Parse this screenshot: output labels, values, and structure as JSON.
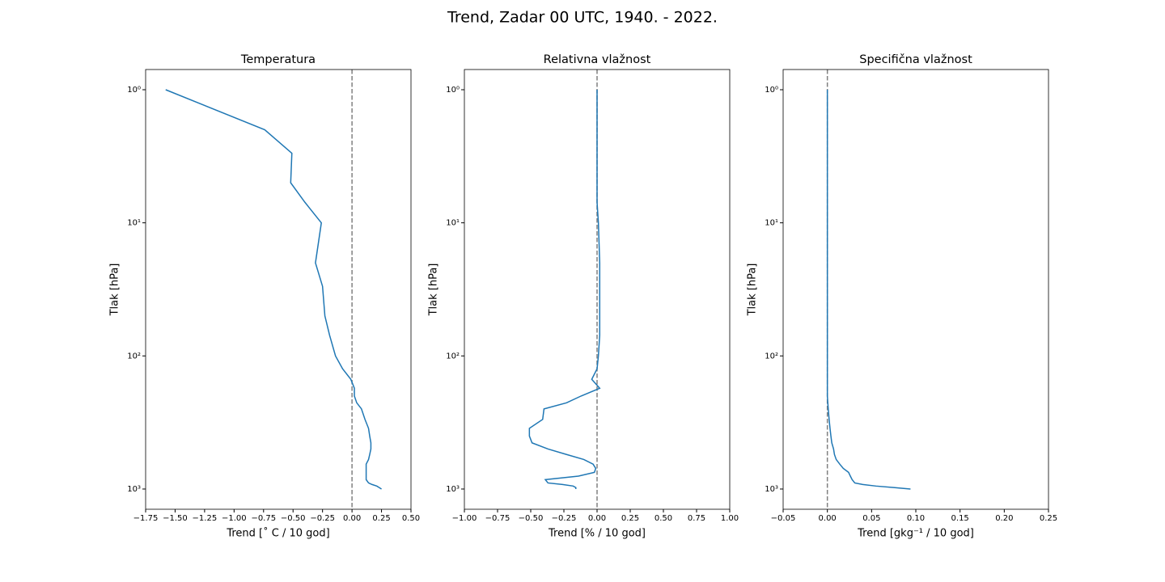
{
  "title": "Trend, Zadar 00 UTC, 1940. - 2022.",
  "chart_data": [
    {
      "type": "line",
      "title": "Temperatura",
      "xlabel": "Trend [˚ C / 10 god]",
      "ylabel": "Tlak [hPa]",
      "y": [
        1,
        2,
        3,
        5,
        7,
        10,
        20,
        30,
        50,
        70,
        100,
        125,
        150,
        175,
        200,
        225,
        250,
        300,
        350,
        400,
        450,
        500,
        550,
        600,
        650,
        700,
        750,
        800,
        850,
        900,
        925,
        950,
        975,
        1000
      ],
      "series": [
        {
          "color": "#1f77b4",
          "values": [
            -1.58,
            -0.74,
            -0.51,
            -0.52,
            -0.4,
            -0.26,
            -0.31,
            -0.25,
            -0.23,
            -0.19,
            -0.14,
            -0.08,
            -0.01,
            0.02,
            0.02,
            0.04,
            0.08,
            0.11,
            0.14,
            0.15,
            0.16,
            0.16,
            0.15,
            0.14,
            0.12,
            0.12,
            0.12,
            0.12,
            0.12,
            0.14,
            0.17,
            0.21,
            0.23,
            0.25
          ]
        }
      ],
      "xlim": [
        -1.75,
        0.5
      ],
      "xticks": [
        {
          "value": -1.75,
          "label": "−1.75"
        },
        {
          "value": -1.5,
          "label": "−1.50"
        },
        {
          "value": -1.25,
          "label": "−1.25"
        },
        {
          "value": -1,
          "label": "−1.00"
        },
        {
          "value": -0.75,
          "label": "−0.75"
        },
        {
          "value": -0.5,
          "label": "−0.50"
        },
        {
          "value": -0.25,
          "label": "−0.25"
        },
        {
          "value": 0,
          "label": "0.00"
        },
        {
          "value": 0.25,
          "label": "0.25"
        },
        {
          "value": 0.5,
          "label": "0.50"
        }
      ],
      "ylim": [
        1419,
        0.705
      ],
      "yscale": "log",
      "yticks": [
        {
          "value": 1,
          "label": "10⁰"
        },
        {
          "value": 10,
          "label": "10¹"
        },
        {
          "value": 100,
          "label": "10²"
        },
        {
          "value": 1000,
          "label": "10³"
        }
      ],
      "reference_line": {
        "value": 0,
        "color": "#808080",
        "style": "dashed"
      }
    },
    {
      "type": "line",
      "title": "Relativna vlažnost",
      "xlabel": "Trend [% / 10 god]",
      "ylabel": "Tlak [hPa]",
      "y": [
        1,
        2,
        3,
        5,
        7,
        10,
        20,
        30,
        50,
        70,
        100,
        125,
        150,
        175,
        200,
        225,
        250,
        300,
        350,
        400,
        450,
        500,
        550,
        600,
        650,
        700,
        750,
        800,
        850,
        900,
        925,
        950,
        975,
        1000
      ],
      "series": [
        {
          "color": "#1f77b4",
          "values": [
            0,
            0,
            0,
            0,
            0,
            0.01,
            0.02,
            0.02,
            0.02,
            0.02,
            0.01,
            0,
            -0.04,
            0.02,
            -0.12,
            -0.23,
            -0.4,
            -0.41,
            -0.51,
            -0.51,
            -0.49,
            -0.37,
            -0.23,
            -0.1,
            -0.03,
            -0.01,
            -0.02,
            -0.14,
            -0.39,
            -0.37,
            -0.26,
            -0.18,
            -0.16,
            -0.16
          ]
        }
      ],
      "xlim": [
        -1,
        1
      ],
      "xticks": [
        {
          "value": -1,
          "label": "−1.00"
        },
        {
          "value": -0.75,
          "label": "−0.75"
        },
        {
          "value": -0.5,
          "label": "−0.50"
        },
        {
          "value": -0.25,
          "label": "−0.25"
        },
        {
          "value": 0,
          "label": "0.00"
        },
        {
          "value": 0.25,
          "label": "0.25"
        },
        {
          "value": 0.5,
          "label": "0.50"
        },
        {
          "value": 0.75,
          "label": "0.75"
        },
        {
          "value": 1,
          "label": "1.00"
        }
      ],
      "ylim": [
        1419,
        0.705
      ],
      "yscale": "log",
      "yticks": [
        {
          "value": 1,
          "label": "10⁰"
        },
        {
          "value": 10,
          "label": "10¹"
        },
        {
          "value": 100,
          "label": "10²"
        },
        {
          "value": 1000,
          "label": "10³"
        }
      ],
      "reference_line": {
        "value": 0,
        "color": "#808080",
        "style": "dashed"
      }
    },
    {
      "type": "line",
      "title": "Specifična vlažnost",
      "xlabel": "Trend [gkg⁻¹ / 10 god]",
      "ylabel": "Tlak [hPa]",
      "y": [
        1,
        2,
        3,
        5,
        7,
        10,
        20,
        30,
        50,
        70,
        100,
        125,
        150,
        175,
        200,
        225,
        250,
        300,
        350,
        400,
        450,
        500,
        550,
        600,
        650,
        700,
        750,
        800,
        850,
        900,
        925,
        950,
        975,
        1000
      ],
      "series": [
        {
          "color": "#1f77b4",
          "values": [
            0,
            0,
            0,
            0,
            0,
            0,
            0,
            0,
            0,
            0,
            0,
            0,
            0,
            0,
            0,
            0.0005,
            0.001,
            0.002,
            0.003,
            0.004,
            0.005,
            0.007,
            0.008,
            0.01,
            0.014,
            0.018,
            0.024,
            0.026,
            0.028,
            0.031,
            0.04,
            0.055,
            0.075,
            0.094
          ]
        }
      ],
      "xlim": [
        -0.05,
        0.25
      ],
      "xticks": [
        {
          "value": -0.05,
          "label": "−0.05"
        },
        {
          "value": 0,
          "label": "0.00"
        },
        {
          "value": 0.05,
          "label": "0.05"
        },
        {
          "value": 0.1,
          "label": "0.10"
        },
        {
          "value": 0.15,
          "label": "0.15"
        },
        {
          "value": 0.2,
          "label": "0.20"
        },
        {
          "value": 0.25,
          "label": "0.25"
        }
      ],
      "ylim": [
        1419,
        0.705
      ],
      "yscale": "log",
      "yticks": [
        {
          "value": 1,
          "label": "10⁰"
        },
        {
          "value": 10,
          "label": "10¹"
        },
        {
          "value": 100,
          "label": "10²"
        },
        {
          "value": 1000,
          "label": "10³"
        }
      ],
      "reference_line": {
        "value": 0,
        "color": "#808080",
        "style": "dashed"
      }
    }
  ]
}
